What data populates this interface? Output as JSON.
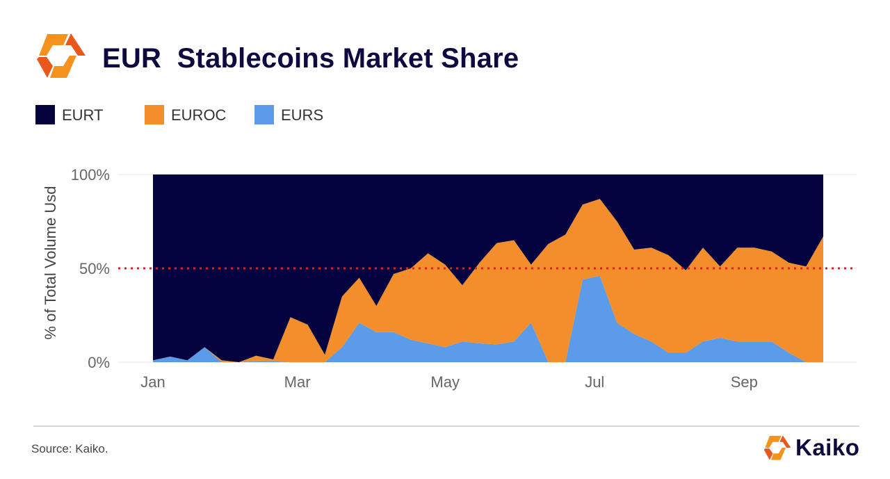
{
  "header": {
    "title": "EUR  Stablecoins Market Share",
    "logo_icon": "kaiko-hexagon-icon"
  },
  "colors": {
    "EURT": "#05033f",
    "EUROC": "#f28e2b",
    "EURS": "#5b9be8",
    "reference_line": "#e01f1f",
    "logo_orange": "#f5921e",
    "logo_dark_orange": "#e8581c"
  },
  "legend": [
    {
      "name": "EURT",
      "color": "#05033f"
    },
    {
      "name": "EUROC",
      "color": "#f28e2b"
    },
    {
      "name": "EURS",
      "color": "#5b9be8"
    }
  ],
  "chart_data": {
    "type": "area",
    "stacked": true,
    "normalized": true,
    "ylabel": "% of Total Volume Usd",
    "yticks": [
      "100%",
      "50%",
      "0%"
    ],
    "ylim": [
      0,
      100
    ],
    "xticks": [
      {
        "label": "Jan",
        "week": 0
      },
      {
        "label": "Mar",
        "week": 8.4
      },
      {
        "label": "May",
        "week": 17
      },
      {
        "label": "Jul",
        "week": 25.7
      },
      {
        "label": "Sep",
        "week": 34.4
      }
    ],
    "weeks": [
      0,
      1,
      2,
      3,
      4,
      5,
      6,
      7,
      8,
      9,
      10,
      11,
      12,
      13,
      14,
      15,
      16,
      17,
      18,
      19,
      20,
      21,
      22,
      23,
      24,
      25,
      26,
      27,
      28,
      29,
      30,
      31,
      32,
      33,
      34,
      35,
      36,
      37,
      38,
      39
    ],
    "reference_line": {
      "value": 50,
      "style": "dotted"
    },
    "series": [
      {
        "name": "EURS",
        "values": [
          1,
          3,
          1,
          8,
          0,
          0,
          0.5,
          0.5,
          0,
          0,
          0,
          8,
          21,
          16,
          16,
          12,
          10,
          8,
          11,
          10,
          9.5,
          11,
          21,
          0,
          0,
          44,
          46,
          21,
          15,
          11,
          5,
          5,
          11,
          13,
          11,
          11,
          11,
          5,
          0,
          0
        ]
      },
      {
        "name": "EUROC",
        "values": [
          0,
          0,
          0,
          0,
          1,
          0,
          3,
          1,
          24,
          20,
          4,
          27,
          24,
          14,
          31,
          38,
          48,
          44,
          30,
          43,
          54,
          54,
          31,
          63,
          68,
          40,
          41,
          54,
          45,
          50,
          52,
          44,
          50,
          38,
          50,
          50,
          48,
          48,
          51,
          67
        ]
      },
      {
        "name": "EURT",
        "values": [
          99,
          97,
          99,
          92,
          99,
          100,
          96.5,
          98.5,
          76,
          80,
          96,
          65,
          55,
          70,
          53,
          50,
          42,
          48,
          59,
          47,
          36.5,
          35,
          48,
          37,
          32,
          16,
          13,
          25,
          40,
          39,
          43,
          51,
          39,
          49,
          39,
          39,
          41,
          47,
          49,
          33
        ]
      }
    ]
  },
  "footer": {
    "source": "Source: Kaiko.",
    "brand_name": "Kaiko",
    "brand_icon": "kaiko-hexagon-icon"
  }
}
